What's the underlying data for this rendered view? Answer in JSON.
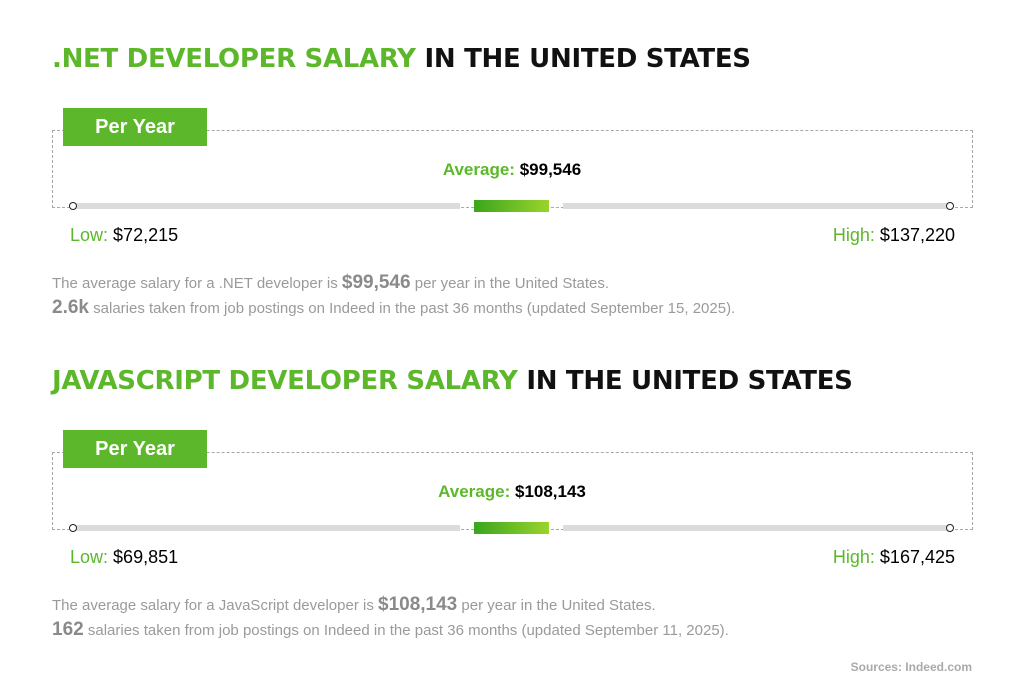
{
  "sections": [
    {
      "title_highlight": ".NET DEVELOPER SALARY",
      "title_rest": "IN THE UNITED STATES",
      "period": "Per Year",
      "average_label": "Average:",
      "average": "$99,546",
      "low_label": "Low:",
      "low": "$72,215",
      "high_label": "High:",
      "high": "$137,220",
      "summary_before": "The average salary for a .NET developer is",
      "summary_amount": "$99,546",
      "summary_after": "per year in the United States.",
      "count": "2.6k",
      "count_text": "salaries taken from job postings on Indeed in the past 36 months (updated September 15, 2025)."
    },
    {
      "title_highlight": "JAVASCRIPT DEVELOPER SALARY",
      "title_rest": "IN THE UNITED STATES",
      "period": "Per Year",
      "average_label": "Average:",
      "average": "$108,143",
      "low_label": "Low:",
      "low": "$69,851",
      "high_label": "High:",
      "high": "$167,425",
      "summary_before": "The average salary for a JavaScript developer is",
      "summary_amount": "$108,143",
      "summary_after": "per year in the United States.",
      "count": "162",
      "count_text": "salaries taken from job postings on Indeed in the past 36 months (updated September 11, 2025)."
    }
  ],
  "source": "Sources: Indeed.com"
}
